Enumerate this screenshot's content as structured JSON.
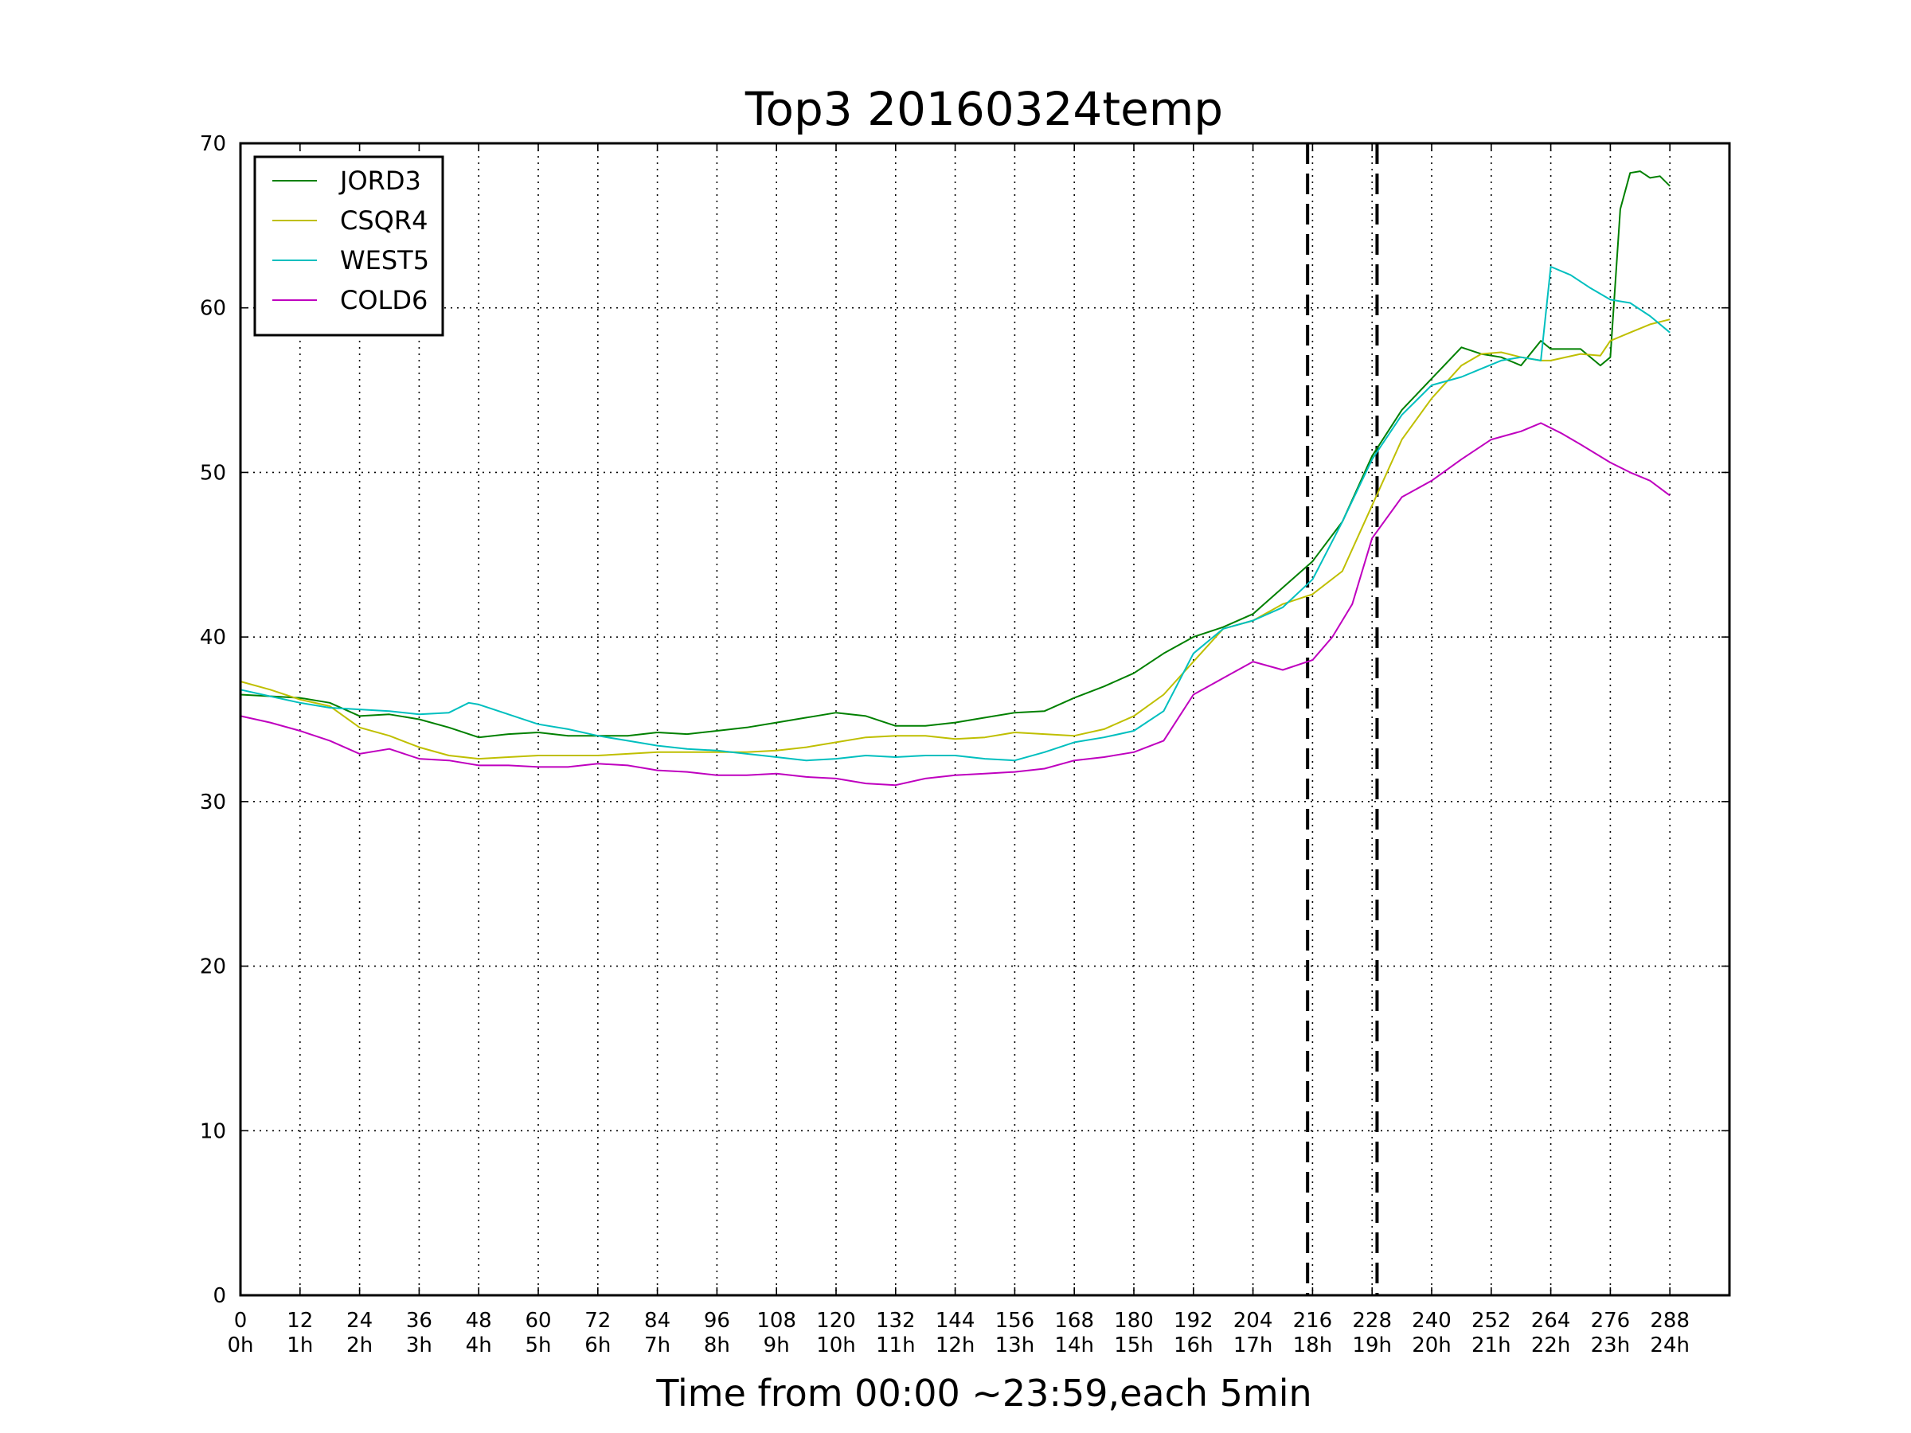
{
  "chart_data": {
    "type": "line",
    "title": "Top3 20160324temp",
    "xlabel": "Time from 00:00 ~23:59,each 5min",
    "ylabel": "",
    "xlim": [
      0,
      300
    ],
    "ylim": [
      0,
      70
    ],
    "grid": true,
    "legend_position": "top-left",
    "x_ticks": [
      {
        "value": 0,
        "label": "0",
        "sublabel": "0h"
      },
      {
        "value": 12,
        "label": "12",
        "sublabel": "1h"
      },
      {
        "value": 24,
        "label": "24",
        "sublabel": "2h"
      },
      {
        "value": 36,
        "label": "36",
        "sublabel": "3h"
      },
      {
        "value": 48,
        "label": "48",
        "sublabel": "4h"
      },
      {
        "value": 60,
        "label": "60",
        "sublabel": "5h"
      },
      {
        "value": 72,
        "label": "72",
        "sublabel": "6h"
      },
      {
        "value": 84,
        "label": "84",
        "sublabel": "7h"
      },
      {
        "value": 96,
        "label": "96",
        "sublabel": "8h"
      },
      {
        "value": 108,
        "label": "108",
        "sublabel": "9h"
      },
      {
        "value": 120,
        "label": "120",
        "sublabel": "10h"
      },
      {
        "value": 132,
        "label": "132",
        "sublabel": "11h"
      },
      {
        "value": 144,
        "label": "144",
        "sublabel": "12h"
      },
      {
        "value": 156,
        "label": "156",
        "sublabel": "13h"
      },
      {
        "value": 168,
        "label": "168",
        "sublabel": "14h"
      },
      {
        "value": 180,
        "label": "180",
        "sublabel": "15h"
      },
      {
        "value": 192,
        "label": "192",
        "sublabel": "16h"
      },
      {
        "value": 204,
        "label": "204",
        "sublabel": "17h"
      },
      {
        "value": 216,
        "label": "216",
        "sublabel": "18h"
      },
      {
        "value": 228,
        "label": "228",
        "sublabel": "19h"
      },
      {
        "value": 240,
        "label": "240",
        "sublabel": "20h"
      },
      {
        "value": 252,
        "label": "252",
        "sublabel": "21h"
      },
      {
        "value": 264,
        "label": "264",
        "sublabel": "22h"
      },
      {
        "value": 276,
        "label": "276",
        "sublabel": "23h"
      },
      {
        "value": 288,
        "label": "288",
        "sublabel": "24h"
      }
    ],
    "y_ticks": [
      0,
      10,
      20,
      30,
      40,
      50,
      60,
      70
    ],
    "vlines": [
      {
        "x": 215,
        "style": "dashed",
        "color": "#000000"
      },
      {
        "x": 229,
        "style": "dashed",
        "color": "#000000"
      }
    ],
    "series": [
      {
        "name": "JORD3",
        "color": "#008000",
        "points": [
          [
            0,
            36.5
          ],
          [
            12,
            36.3
          ],
          [
            18,
            36
          ],
          [
            24,
            35.2
          ],
          [
            30,
            35.3
          ],
          [
            36,
            35
          ],
          [
            42,
            34.5
          ],
          [
            48,
            33.9
          ],
          [
            54,
            34.1
          ],
          [
            60,
            34.2
          ],
          [
            66,
            34
          ],
          [
            72,
            34
          ],
          [
            78,
            34
          ],
          [
            84,
            34.2
          ],
          [
            90,
            34.1
          ],
          [
            96,
            34.3
          ],
          [
            102,
            34.5
          ],
          [
            108,
            34.8
          ],
          [
            114,
            35.1
          ],
          [
            120,
            35.4
          ],
          [
            126,
            35.2
          ],
          [
            132,
            34.6
          ],
          [
            138,
            34.6
          ],
          [
            144,
            34.8
          ],
          [
            150,
            35.1
          ],
          [
            156,
            35.4
          ],
          [
            162,
            35.5
          ],
          [
            168,
            36.3
          ],
          [
            174,
            37
          ],
          [
            180,
            37.8
          ],
          [
            186,
            39
          ],
          [
            192,
            40
          ],
          [
            198,
            40.6
          ],
          [
            204,
            41.4
          ],
          [
            210,
            43
          ],
          [
            216,
            44.6
          ],
          [
            222,
            47
          ],
          [
            228,
            51
          ],
          [
            234,
            53.8
          ],
          [
            240,
            55.7
          ],
          [
            246,
            57.6
          ],
          [
            250,
            57.2
          ],
          [
            254,
            57
          ],
          [
            258,
            56.5
          ],
          [
            262,
            58
          ],
          [
            264,
            57.5
          ],
          [
            270,
            57.5
          ],
          [
            274,
            56.5
          ],
          [
            276,
            57
          ],
          [
            278,
            66
          ],
          [
            280,
            68.2
          ],
          [
            282,
            68.3
          ],
          [
            284,
            67.9
          ],
          [
            286,
            68
          ],
          [
            288,
            67.4
          ]
        ]
      },
      {
        "name": "CSQR4",
        "color": "#bfbf00",
        "points": [
          [
            0,
            37.3
          ],
          [
            6,
            36.8
          ],
          [
            12,
            36.2
          ],
          [
            18,
            35.8
          ],
          [
            24,
            34.5
          ],
          [
            30,
            34
          ],
          [
            36,
            33.3
          ],
          [
            42,
            32.8
          ],
          [
            48,
            32.6
          ],
          [
            54,
            32.7
          ],
          [
            60,
            32.8
          ],
          [
            66,
            32.8
          ],
          [
            72,
            32.8
          ],
          [
            78,
            32.9
          ],
          [
            84,
            33
          ],
          [
            90,
            33
          ],
          [
            96,
            33
          ],
          [
            102,
            33
          ],
          [
            108,
            33.1
          ],
          [
            114,
            33.3
          ],
          [
            120,
            33.6
          ],
          [
            126,
            33.9
          ],
          [
            132,
            34
          ],
          [
            138,
            34
          ],
          [
            144,
            33.8
          ],
          [
            150,
            33.9
          ],
          [
            156,
            34.2
          ],
          [
            162,
            34.1
          ],
          [
            168,
            34
          ],
          [
            174,
            34.4
          ],
          [
            180,
            35.2
          ],
          [
            186,
            36.5
          ],
          [
            192,
            38.5
          ],
          [
            198,
            40.5
          ],
          [
            204,
            41
          ],
          [
            210,
            42
          ],
          [
            216,
            42.6
          ],
          [
            222,
            44
          ],
          [
            228,
            48
          ],
          [
            234,
            52
          ],
          [
            240,
            54.5
          ],
          [
            246,
            56.5
          ],
          [
            250,
            57.2
          ],
          [
            254,
            57.3
          ],
          [
            258,
            57
          ],
          [
            262,
            56.8
          ],
          [
            264,
            56.8
          ],
          [
            270,
            57.2
          ],
          [
            274,
            57.1
          ],
          [
            276,
            58
          ],
          [
            280,
            58.5
          ],
          [
            284,
            59
          ],
          [
            288,
            59.3
          ]
        ]
      },
      {
        "name": "WEST5",
        "color": "#00bfbf",
        "points": [
          [
            0,
            36.8
          ],
          [
            6,
            36.4
          ],
          [
            12,
            36
          ],
          [
            18,
            35.7
          ],
          [
            24,
            35.6
          ],
          [
            30,
            35.5
          ],
          [
            36,
            35.3
          ],
          [
            42,
            35.4
          ],
          [
            46,
            36
          ],
          [
            48,
            35.9
          ],
          [
            54,
            35.3
          ],
          [
            60,
            34.7
          ],
          [
            66,
            34.4
          ],
          [
            72,
            34
          ],
          [
            78,
            33.7
          ],
          [
            84,
            33.4
          ],
          [
            90,
            33.2
          ],
          [
            96,
            33.1
          ],
          [
            102,
            32.9
          ],
          [
            108,
            32.7
          ],
          [
            114,
            32.5
          ],
          [
            120,
            32.6
          ],
          [
            126,
            32.8
          ],
          [
            132,
            32.7
          ],
          [
            138,
            32.8
          ],
          [
            144,
            32.8
          ],
          [
            150,
            32.6
          ],
          [
            156,
            32.5
          ],
          [
            162,
            33
          ],
          [
            168,
            33.6
          ],
          [
            174,
            33.9
          ],
          [
            180,
            34.3
          ],
          [
            186,
            35.5
          ],
          [
            192,
            39
          ],
          [
            198,
            40.5
          ],
          [
            204,
            41
          ],
          [
            210,
            41.8
          ],
          [
            216,
            43.5
          ],
          [
            222,
            47
          ],
          [
            228,
            50.8
          ],
          [
            234,
            53.5
          ],
          [
            240,
            55.3
          ],
          [
            246,
            55.8
          ],
          [
            250,
            56.3
          ],
          [
            254,
            56.8
          ],
          [
            258,
            57
          ],
          [
            262,
            56.8
          ],
          [
            264,
            62.5
          ],
          [
            268,
            62
          ],
          [
            272,
            61.2
          ],
          [
            276,
            60.5
          ],
          [
            280,
            60.3
          ],
          [
            284,
            59.5
          ],
          [
            288,
            58.5
          ]
        ]
      },
      {
        "name": "COLD6",
        "color": "#bf00bf",
        "points": [
          [
            0,
            35.2
          ],
          [
            6,
            34.8
          ],
          [
            12,
            34.3
          ],
          [
            18,
            33.7
          ],
          [
            24,
            32.9
          ],
          [
            30,
            33.2
          ],
          [
            36,
            32.6
          ],
          [
            42,
            32.5
          ],
          [
            48,
            32.2
          ],
          [
            54,
            32.2
          ],
          [
            60,
            32.1
          ],
          [
            66,
            32.1
          ],
          [
            72,
            32.3
          ],
          [
            78,
            32.2
          ],
          [
            84,
            31.9
          ],
          [
            90,
            31.8
          ],
          [
            96,
            31.6
          ],
          [
            102,
            31.6
          ],
          [
            108,
            31.7
          ],
          [
            114,
            31.5
          ],
          [
            120,
            31.4
          ],
          [
            126,
            31.1
          ],
          [
            132,
            31
          ],
          [
            138,
            31.4
          ],
          [
            144,
            31.6
          ],
          [
            150,
            31.7
          ],
          [
            156,
            31.8
          ],
          [
            162,
            32
          ],
          [
            168,
            32.5
          ],
          [
            174,
            32.7
          ],
          [
            180,
            33
          ],
          [
            186,
            33.7
          ],
          [
            192,
            36.5
          ],
          [
            198,
            37.5
          ],
          [
            204,
            38.5
          ],
          [
            210,
            38
          ],
          [
            216,
            38.6
          ],
          [
            220,
            40
          ],
          [
            224,
            42
          ],
          [
            228,
            46
          ],
          [
            234,
            48.5
          ],
          [
            240,
            49.5
          ],
          [
            246,
            50.8
          ],
          [
            252,
            52
          ],
          [
            258,
            52.5
          ],
          [
            262,
            53
          ],
          [
            266,
            52.4
          ],
          [
            270,
            51.7
          ],
          [
            276,
            50.6
          ],
          [
            280,
            50
          ],
          [
            284,
            49.5
          ],
          [
            288,
            48.6
          ]
        ]
      }
    ]
  }
}
